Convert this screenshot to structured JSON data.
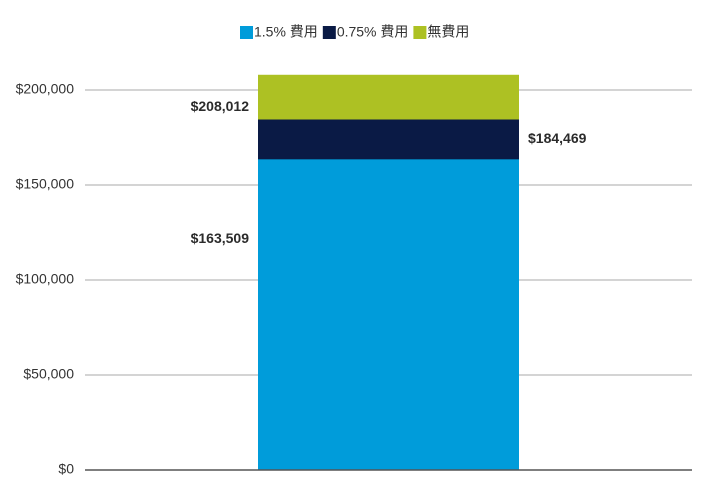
{
  "chart_data": {
    "type": "bar",
    "overlap": true,
    "categories": [
      null
    ],
    "series": [
      {
        "name": "1.5% 費用",
        "color": "#009cda",
        "values": [
          163509
        ],
        "value_labels": [
          "$163,509"
        ]
      },
      {
        "name": "0.75% 費用",
        "color": "#0a1a45",
        "values": [
          184469
        ],
        "value_labels": [
          "$184,469"
        ]
      },
      {
        "name": "無費用",
        "color": "#adc123",
        "values": [
          208012
        ],
        "value_labels": [
          "$208,012"
        ]
      }
    ],
    "ylim": [
      0,
      210000
    ],
    "yticks": [
      {
        "value": 0,
        "label": "$0"
      },
      {
        "value": 50000,
        "label": "$50,000"
      },
      {
        "value": 100000,
        "label": "$100,000"
      },
      {
        "value": 150000,
        "label": "$150,000"
      },
      {
        "value": 200000,
        "label": "$200,000"
      }
    ],
    "grid": true,
    "legend": "top"
  }
}
